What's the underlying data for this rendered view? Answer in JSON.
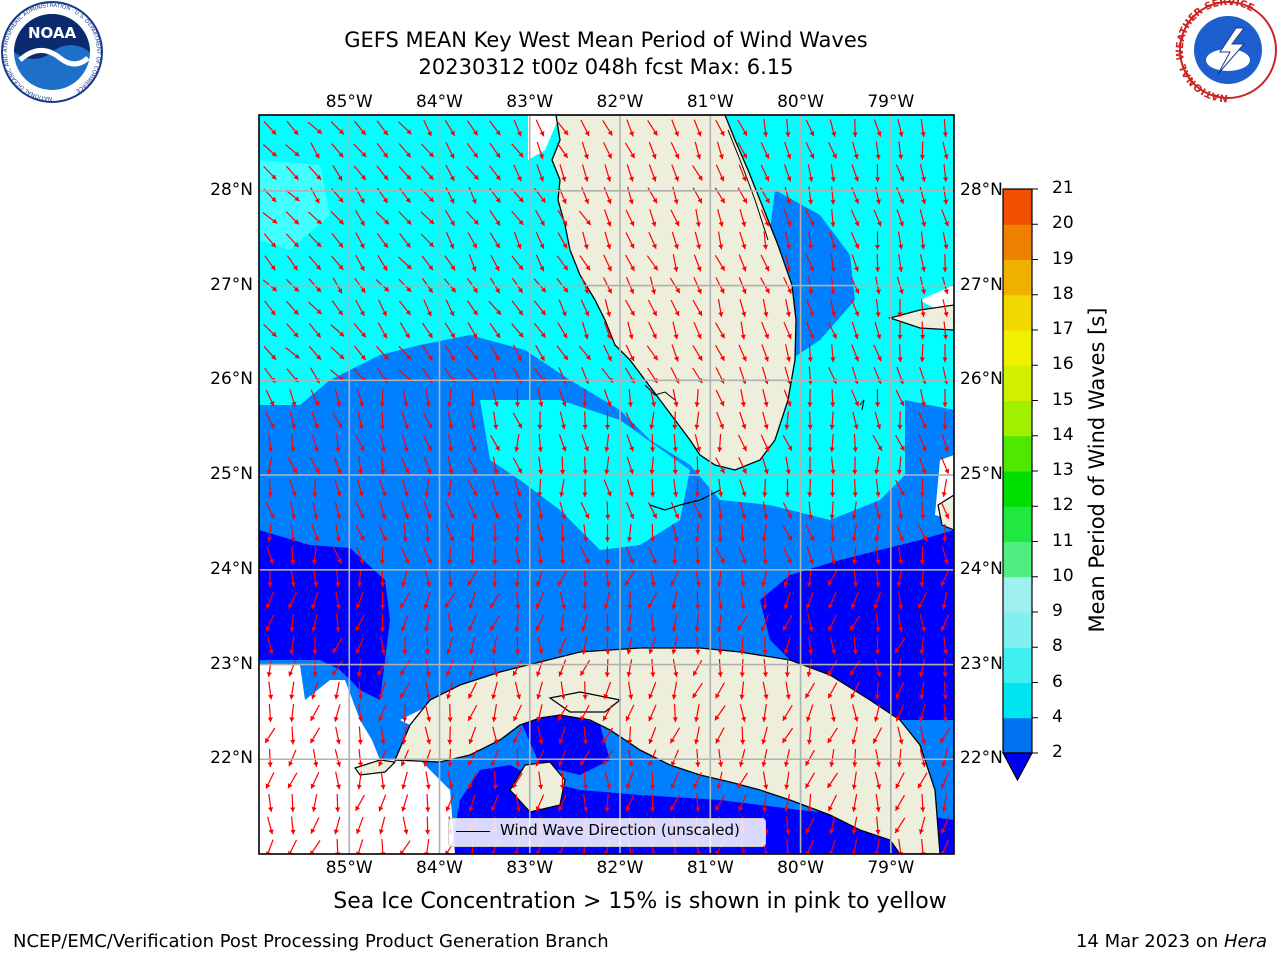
{
  "header": {
    "title_line1": "GEFS MEAN Key West Mean Period of Wind Waves",
    "title_line2": "20230312 t00z 048h fcst   Max: 6.15"
  },
  "logos": {
    "noaa": {
      "icon": "noaa-logo",
      "text": "NOAA",
      "ring_text": "NATIONAL OCEANIC AND ATMOSPHERIC ADMINISTRATION · U.S. DEPARTMENT OF COMMERCE"
    },
    "nws": {
      "icon": "nws-logo",
      "ring_text": "NATIONAL WEATHER SERVICE"
    }
  },
  "map": {
    "lon_labels": [
      "85°W",
      "84°W",
      "83°W",
      "82°W",
      "81°W",
      "80°W",
      "79°W"
    ],
    "lat_labels": [
      "28°N",
      "27°N",
      "26°N",
      "25°N",
      "24°N",
      "23°N",
      "22°N"
    ],
    "lon_range": [
      -86.0,
      -78.3
    ],
    "lat_range": [
      21.0,
      28.8
    ],
    "gridlines": true,
    "land_color": "#eeeedc",
    "legend": {
      "label": "Wind Wave Direction (unscaled)",
      "placement": "bottom-center"
    }
  },
  "colorbar": {
    "label": "Mean Period of Wind Waves [s]",
    "ticks": [
      "2",
      "4",
      "6",
      "8",
      "9",
      "10",
      "11",
      "12",
      "13",
      "14",
      "15",
      "16",
      "17",
      "18",
      "19",
      "20",
      "21"
    ],
    "colors": [
      "#0072f0",
      "#00e6f0",
      "#40f0f0",
      "#80f0f0",
      "#a0f0f0",
      "#50ed80",
      "#20e840",
      "#00e000",
      "#50e800",
      "#a0f000",
      "#d0f000",
      "#f0f000",
      "#f0d800",
      "#f0b000",
      "#f08000",
      "#f05000",
      "#f02800",
      "#f00000"
    ],
    "under_color": "#0000f0"
  },
  "chart_data": {
    "type": "heatmap",
    "title": "GEFS MEAN Key West Mean Period of Wind Waves",
    "subtitle": "20230312 t00z 048h fcst   Max: 6.15",
    "variable": "Mean Period of Wind Waves [s]",
    "max_value": 6.15,
    "levels": [
      2,
      4,
      6,
      8,
      9,
      10,
      11,
      12,
      13,
      14,
      15,
      16,
      17,
      18,
      19,
      20,
      21
    ],
    "xlim": [
      -86.0,
      -78.3
    ],
    "ylim": [
      21.0,
      28.8
    ]
  },
  "footer": {
    "note": "Sea Ice Concentration > 15% is shown in pink to yellow",
    "credit": "NCEP/EMC/Verification Post Processing Product Generation Branch",
    "date": "14 Mar 2023 on ",
    "host": "Hera"
  }
}
